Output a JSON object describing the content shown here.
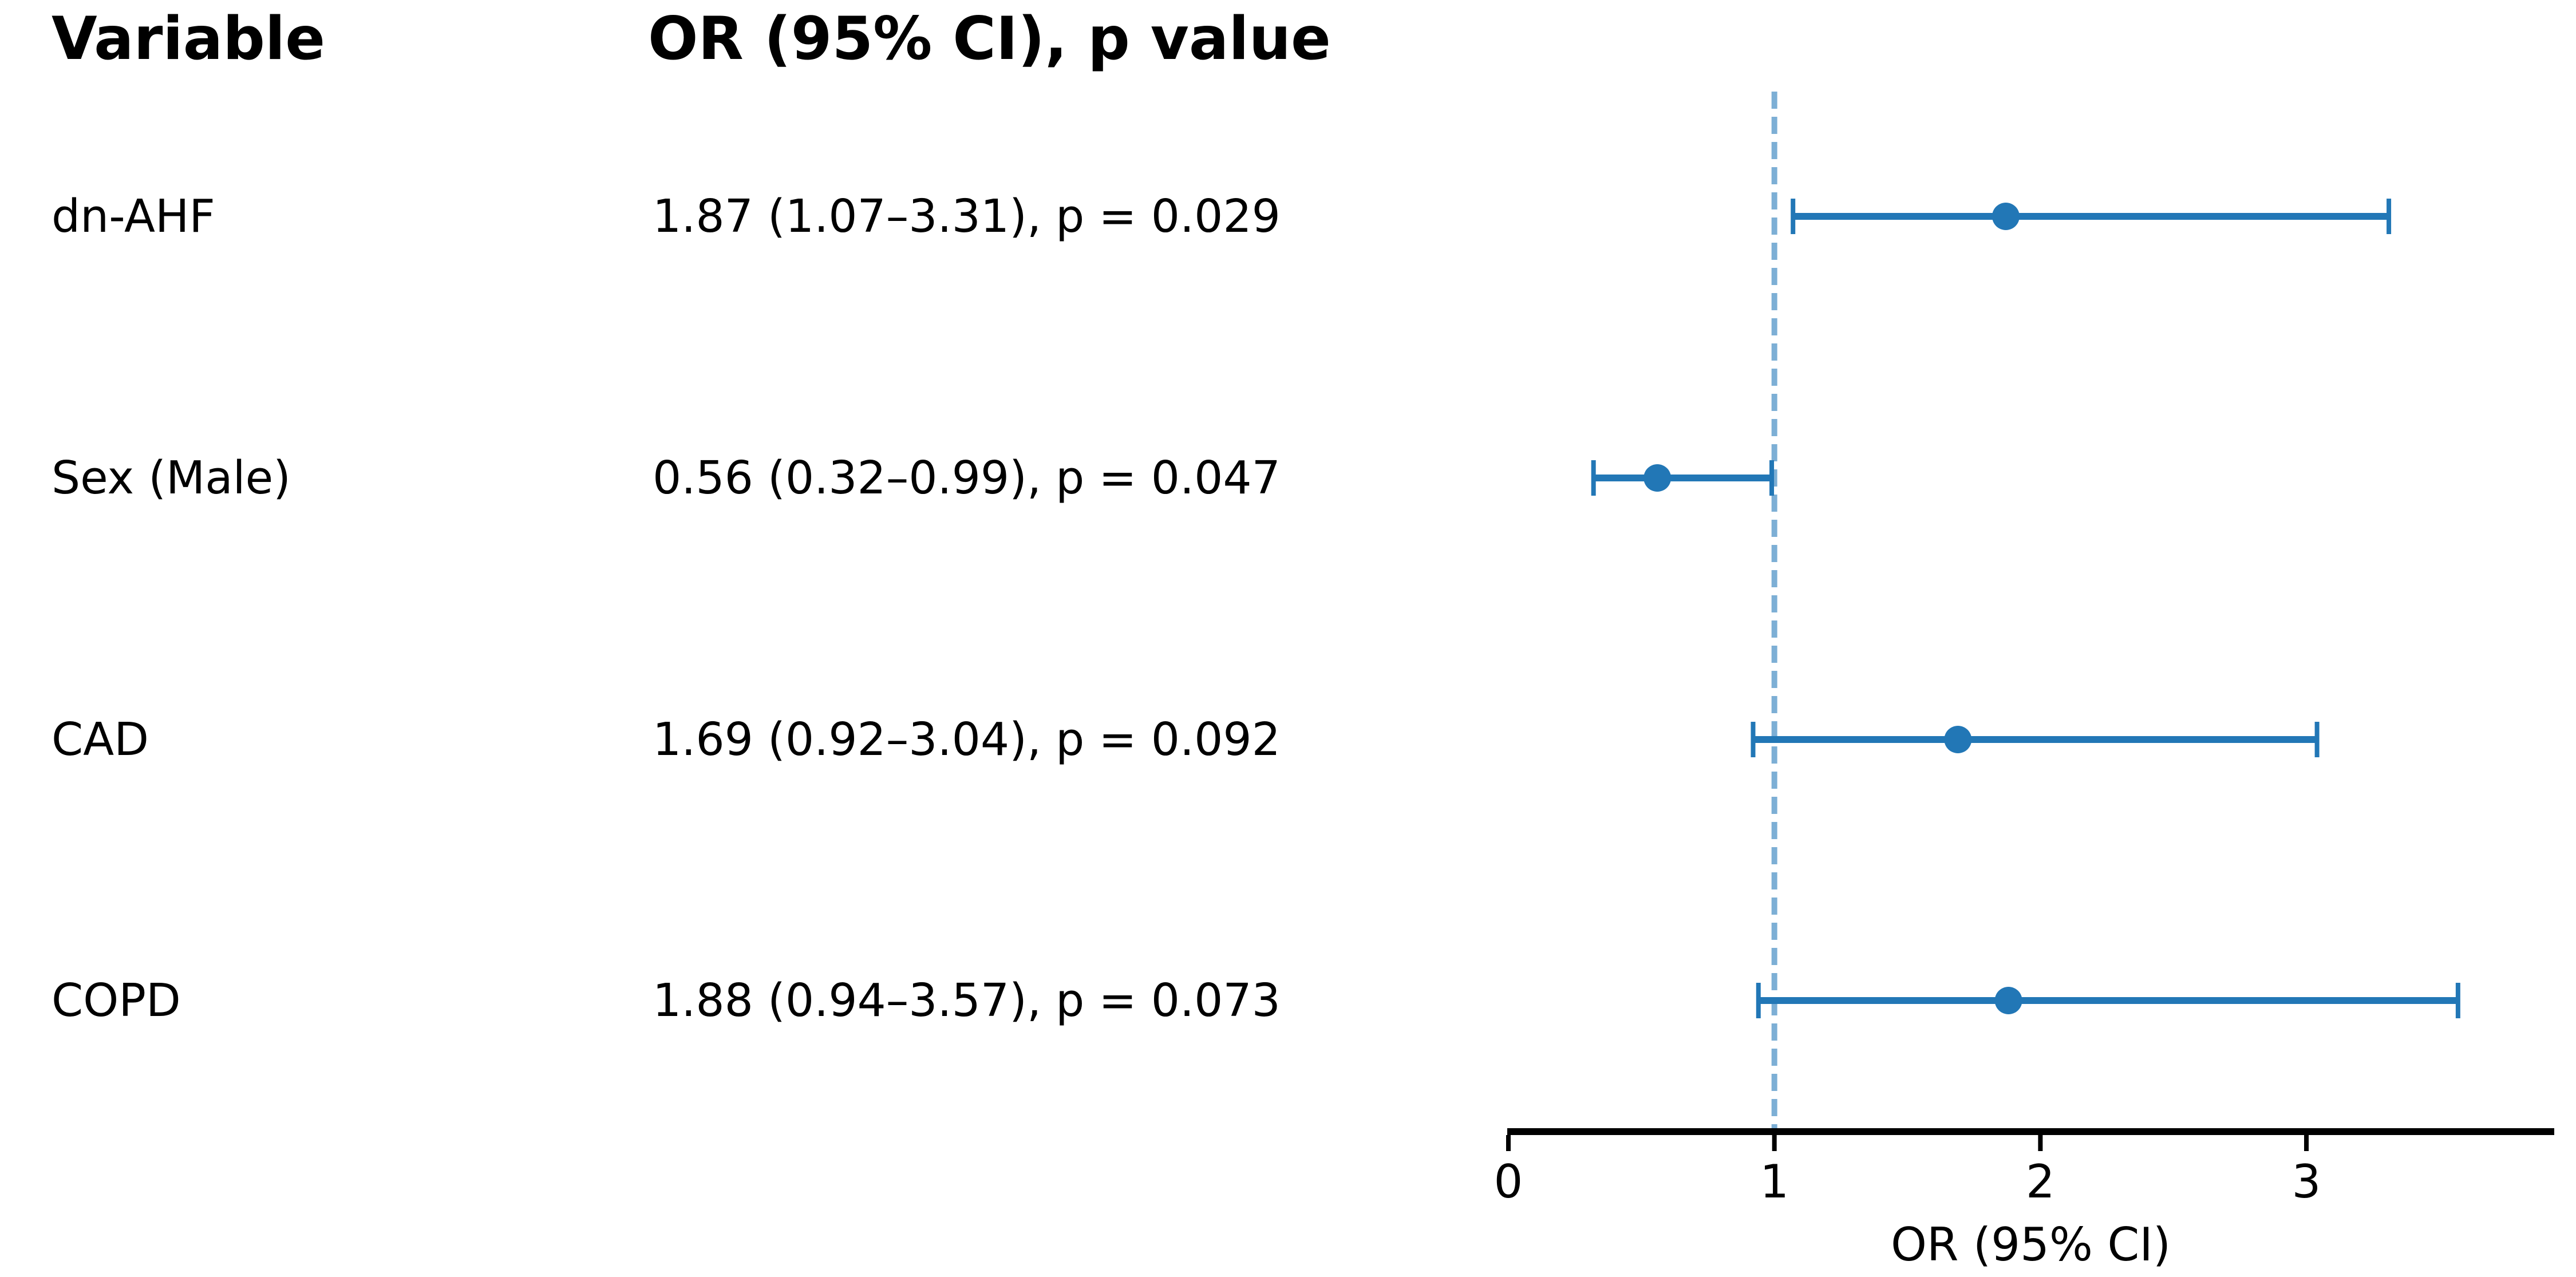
{
  "table": {
    "headers": {
      "variable": "Variable",
      "or_ci": "OR (95% CI), p value"
    },
    "rows": [
      {
        "variable": "dn-AHF",
        "or_ci": "1.87 (1.07–3.31), p = 0.029"
      },
      {
        "variable": "Sex (Male)",
        "or_ci": "0.56 (0.32–0.99), p = 0.047"
      },
      {
        "variable": "CAD",
        "or_ci": "1.69 (0.92–3.04), p = 0.092"
      },
      {
        "variable": "COPD",
        "or_ci": "1.88 (0.94–3.57), p = 0.073"
      }
    ]
  },
  "chart_data": {
    "type": "scatter",
    "subtype": "forest-plot",
    "categories": [
      "dn-AHF",
      "Sex (Male)",
      "CAD",
      "COPD"
    ],
    "series": [
      {
        "name": "OR (95% CI)",
        "or": [
          1.87,
          0.56,
          1.69,
          1.88
        ],
        "ci_low": [
          1.07,
          0.32,
          0.92,
          0.94
        ],
        "ci_high": [
          3.31,
          0.99,
          3.04,
          3.57
        ],
        "p": [
          0.029,
          0.047,
          0.092,
          0.073
        ]
      }
    ],
    "xlabel": "OR (95% CI)",
    "x_ticks": [
      "0",
      "1",
      "2",
      "3"
    ],
    "x_tick_values": [
      0,
      1,
      2,
      3
    ],
    "xlim": [
      0,
      3.93
    ],
    "reference_line": 1,
    "grid": false,
    "legend": "none",
    "colors": {
      "marker": "#2277b6",
      "error_bar": "#2277b6",
      "reference_line": "#7dafd5",
      "axis": "#000000",
      "text": "#000000"
    }
  }
}
